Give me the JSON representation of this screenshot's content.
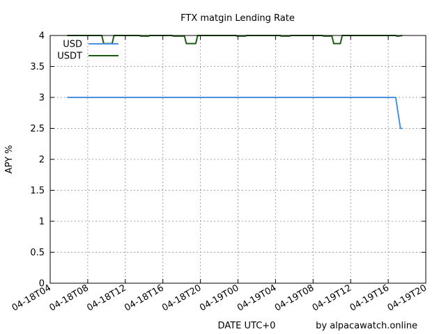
{
  "chart_data": {
    "type": "line",
    "title": "FTX matgin Lending Rate",
    "xlabel": "DATE UTC+0",
    "ylabel": "APY %",
    "credit": "by alpacawatch.online",
    "ylim": [
      0,
      4
    ],
    "yticks": [
      0,
      0.5,
      1,
      1.5,
      2,
      2.5,
      3,
      3.5,
      4
    ],
    "ytick_labels": [
      "0",
      "0.5",
      "1",
      "1.5",
      "2",
      "2.5",
      "3",
      "3.5",
      "4"
    ],
    "xlim_hours": [
      4,
      44
    ],
    "xticks_hours": [
      4,
      8,
      12,
      16,
      20,
      24,
      28,
      32,
      36,
      40,
      44
    ],
    "xtick_labels": [
      "04-18T04",
      "04-18T08",
      "04-18T12",
      "04-18T16",
      "04-18T20",
      "04-19T00",
      "04-19T04",
      "04-19T08",
      "04-19T12",
      "04-19T16",
      "04-19T20"
    ],
    "grid": true,
    "legend_position": "top-left",
    "series": [
      {
        "name": "USD",
        "color": "#4a90e2",
        "x": [
          5.8,
          40.8,
          40.9,
          41.1,
          41.3,
          41.5
        ],
        "y": [
          3.0,
          3.0,
          2.9,
          2.7,
          2.5,
          2.5
        ]
      },
      {
        "name": "USDT",
        "color": "#1a5c10",
        "x": [
          5.8,
          9.5,
          9.7,
          10.6,
          10.8,
          13.5,
          13.6,
          14.5,
          14.6,
          17.0,
          17.1,
          18.3,
          18.5,
          19.5,
          19.7,
          23.8,
          23.9,
          24.8,
          24.9,
          28.5,
          28.6,
          29.5,
          29.6,
          33.0,
          33.1,
          34.0,
          34.2,
          34.9,
          35.1,
          40.8,
          40.9,
          41.1,
          41.5
        ],
        "y": [
          4.0,
          4.0,
          3.87,
          3.87,
          4.0,
          4.0,
          3.99,
          3.99,
          4.0,
          4.0,
          3.99,
          3.99,
          3.87,
          3.87,
          4.0,
          4.0,
          3.99,
          3.99,
          4.0,
          4.0,
          3.99,
          3.99,
          4.0,
          4.0,
          3.99,
          3.99,
          3.87,
          3.87,
          4.0,
          4.0,
          3.99,
          3.99,
          4.0
        ]
      }
    ]
  }
}
